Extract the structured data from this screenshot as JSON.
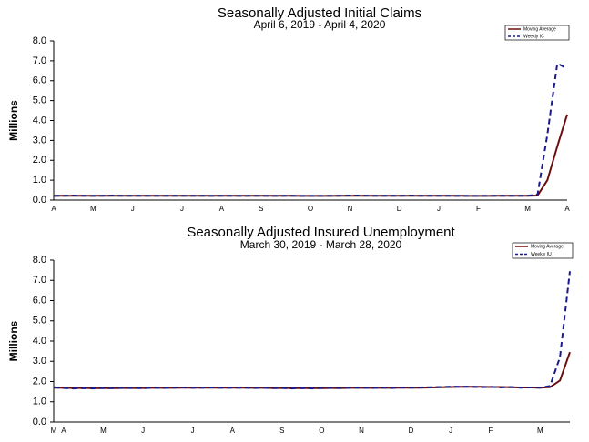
{
  "chart_data": [
    {
      "type": "line",
      "title": "Seasonally Adjusted Initial Claims",
      "subtitle": "April 6, 2019 - April 4, 2020",
      "y_label": "Millions",
      "categories": [
        "A",
        null,
        null,
        null,
        "M",
        null,
        null,
        null,
        "J",
        null,
        null,
        null,
        null,
        "J",
        null,
        null,
        null,
        "A",
        null,
        null,
        null,
        "S",
        null,
        null,
        null,
        null,
        "O",
        null,
        null,
        null,
        "N",
        null,
        null,
        null,
        null,
        "D",
        null,
        null,
        null,
        "J",
        null,
        null,
        null,
        "F",
        null,
        null,
        null,
        null,
        "M",
        null,
        null,
        null,
        "A"
      ],
      "series": [
        {
          "name": "Moving Average",
          "color": "#6b0d0d",
          "dash": false,
          "values": [
            0.22,
            0.22,
            0.22,
            0.22,
            0.22,
            0.22,
            0.22,
            0.22,
            0.22,
            0.22,
            0.22,
            0.22,
            0.22,
            0.22,
            0.22,
            0.22,
            0.22,
            0.22,
            0.22,
            0.22,
            0.22,
            0.22,
            0.22,
            0.22,
            0.22,
            0.21,
            0.21,
            0.21,
            0.21,
            0.22,
            0.22,
            0.22,
            0.22,
            0.22,
            0.22,
            0.22,
            0.22,
            0.22,
            0.22,
            0.22,
            0.22,
            0.22,
            0.21,
            0.21,
            0.21,
            0.22,
            0.22,
            0.22,
            0.22,
            0.23,
            1.0,
            2.7,
            4.3
          ]
        },
        {
          "name": "Weekly IC",
          "color": "#1a1a8c",
          "dash": true,
          "values": [
            0.21,
            0.22,
            0.23,
            0.22,
            0.21,
            0.22,
            0.23,
            0.22,
            0.22,
            0.22,
            0.22,
            0.22,
            0.22,
            0.22,
            0.22,
            0.22,
            0.21,
            0.22,
            0.22,
            0.21,
            0.22,
            0.22,
            0.21,
            0.21,
            0.22,
            0.21,
            0.21,
            0.21,
            0.22,
            0.22,
            0.23,
            0.23,
            0.22,
            0.22,
            0.22,
            0.22,
            0.23,
            0.22,
            0.22,
            0.22,
            0.22,
            0.21,
            0.21,
            0.21,
            0.22,
            0.22,
            0.22,
            0.22,
            0.22,
            0.28,
            3.3,
            6.87,
            6.6
          ]
        }
      ],
      "ylim": [
        0,
        8
      ],
      "yticks": [
        {
          "value": 0,
          "label": "0.0"
        },
        {
          "value": 1,
          "label": "1.0"
        },
        {
          "value": 2,
          "label": "2.0"
        },
        {
          "value": 3,
          "label": "3.0"
        },
        {
          "value": 4,
          "label": "4.0"
        },
        {
          "value": 5,
          "label": "5.0"
        },
        {
          "value": 6,
          "label": "6.0"
        },
        {
          "value": 7,
          "label": "7.0"
        },
        {
          "value": 8,
          "label": "8.0"
        }
      ]
    },
    {
      "type": "line",
      "title": "Seasonally Adjusted Insured Unemployment",
      "subtitle": "March 30, 2019 - March 28, 2020",
      "y_label": "Millions",
      "categories": [
        "M",
        "A",
        null,
        null,
        null,
        "M",
        null,
        null,
        null,
        "J",
        null,
        null,
        null,
        null,
        "J",
        null,
        null,
        null,
        "A",
        null,
        null,
        null,
        null,
        "S",
        null,
        null,
        null,
        "O",
        null,
        null,
        null,
        "N",
        null,
        null,
        null,
        null,
        "D",
        null,
        null,
        null,
        "J",
        null,
        null,
        null,
        "F",
        null,
        null,
        null,
        null,
        "M",
        null,
        null,
        null
      ],
      "series": [
        {
          "name": "Moving Average",
          "color": "#6b0d0d",
          "dash": false,
          "values": [
            1.7,
            1.69,
            1.68,
            1.68,
            1.67,
            1.67,
            1.67,
            1.68,
            1.68,
            1.68,
            1.69,
            1.69,
            1.69,
            1.7,
            1.7,
            1.7,
            1.7,
            1.7,
            1.7,
            1.7,
            1.69,
            1.69,
            1.68,
            1.68,
            1.67,
            1.67,
            1.67,
            1.67,
            1.68,
            1.68,
            1.69,
            1.69,
            1.69,
            1.69,
            1.69,
            1.7,
            1.7,
            1.7,
            1.71,
            1.72,
            1.73,
            1.74,
            1.74,
            1.74,
            1.73,
            1.73,
            1.72,
            1.71,
            1.71,
            1.7,
            1.72,
            2.05,
            3.45
          ]
        },
        {
          "name": "Weekly IU",
          "color": "#1a1a8c",
          "dash": true,
          "values": [
            1.72,
            1.68,
            1.66,
            1.67,
            1.66,
            1.68,
            1.67,
            1.69,
            1.68,
            1.67,
            1.7,
            1.68,
            1.7,
            1.71,
            1.69,
            1.7,
            1.71,
            1.69,
            1.7,
            1.7,
            1.68,
            1.69,
            1.67,
            1.68,
            1.66,
            1.68,
            1.66,
            1.68,
            1.69,
            1.67,
            1.7,
            1.69,
            1.68,
            1.7,
            1.68,
            1.71,
            1.7,
            1.71,
            1.72,
            1.73,
            1.75,
            1.74,
            1.75,
            1.72,
            1.74,
            1.71,
            1.73,
            1.7,
            1.71,
            1.7,
            1.78,
            3.2,
            7.45
          ]
        }
      ],
      "ylim": [
        0,
        8
      ],
      "yticks": [
        {
          "value": 0,
          "label": "0.0"
        },
        {
          "value": 1,
          "label": "1.0"
        },
        {
          "value": 2,
          "label": "2.0"
        },
        {
          "value": 3,
          "label": "3.0"
        },
        {
          "value": 4,
          "label": "4.0"
        },
        {
          "value": 5,
          "label": "5.0"
        },
        {
          "value": 6,
          "label": "6.0"
        },
        {
          "value": 7,
          "label": "7.0"
        },
        {
          "value": 8,
          "label": "8.0"
        }
      ]
    }
  ]
}
